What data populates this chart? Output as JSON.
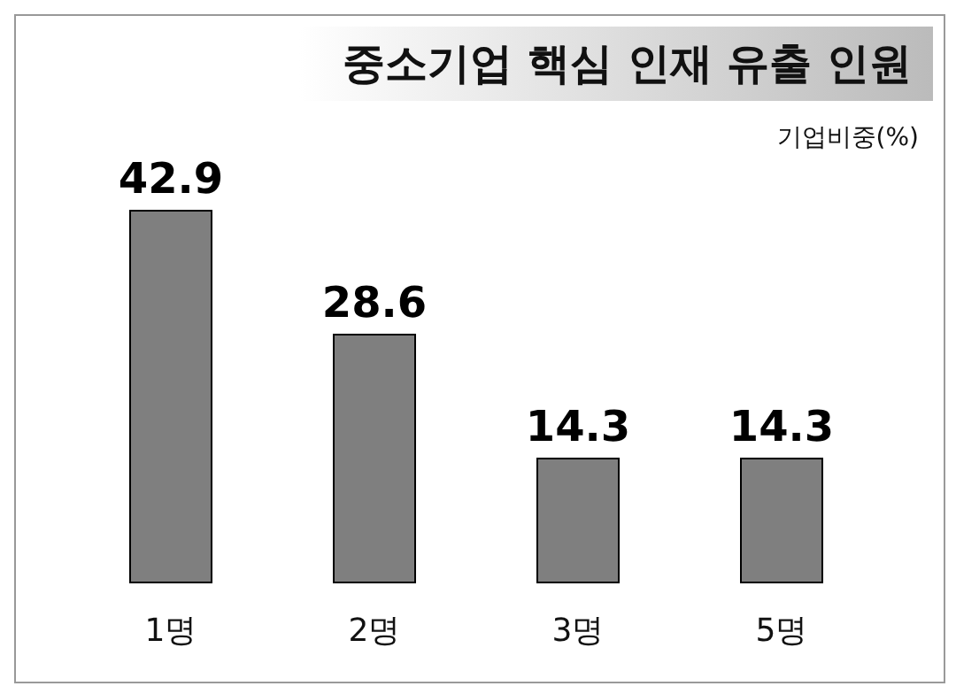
{
  "chart_data": {
    "type": "bar",
    "title": "중소기업 핵심 인재 유출 인원",
    "ylabel": "기업비중(%)",
    "categories": [
      "1명",
      "2명",
      "3명",
      "5명"
    ],
    "values": [
      42.9,
      28.6,
      14.3,
      14.3
    ],
    "color": "#7f7f7f",
    "data_labels": true,
    "grid": false,
    "legend": false
  }
}
